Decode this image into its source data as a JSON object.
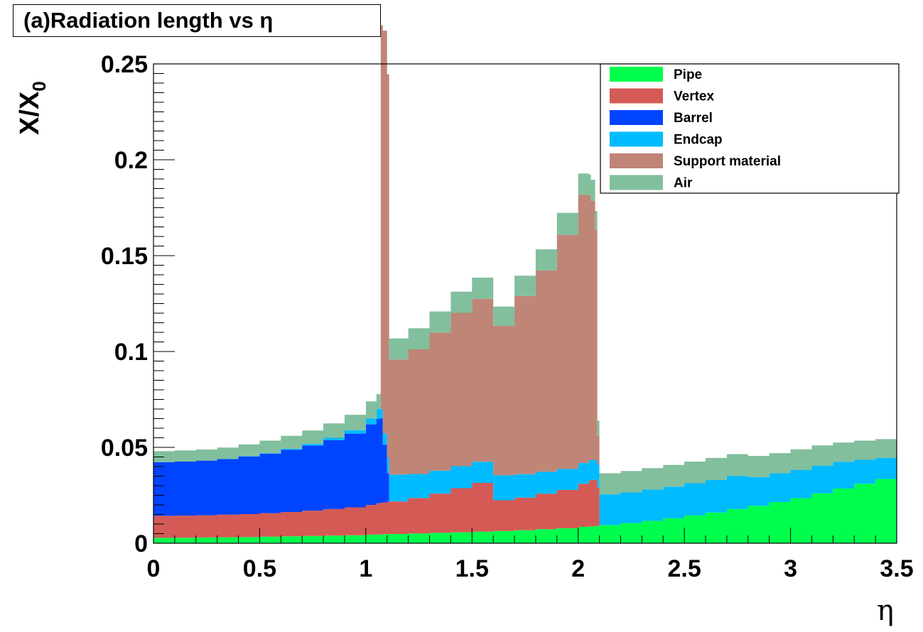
{
  "chart_data": {
    "type": "area",
    "title": "(a)Radiation length vs η",
    "xlabel": "η",
    "ylabel_main": "X/X",
    "ylabel_sub": "0",
    "xlim": [
      0,
      3.5
    ],
    "ylim": [
      0,
      0.25
    ],
    "x_ticks": [
      "0",
      "0.5",
      "1",
      "1.5",
      "2",
      "2.5",
      "3",
      "3.5"
    ],
    "y_ticks": [
      "0",
      "0.05",
      "0.1",
      "0.15",
      "0.2",
      "0.25"
    ],
    "legend_position": "top-right",
    "grid": false,
    "stacked": true,
    "x": [
      0,
      0.1,
      0.2,
      0.3,
      0.4,
      0.5,
      0.6,
      0.7,
      0.8,
      0.9,
      1.0,
      1.05,
      1.07,
      1.08,
      1.1,
      1.11,
      1.2,
      1.3,
      1.4,
      1.5,
      1.6,
      1.6,
      1.61,
      1.7,
      1.8,
      1.9,
      2.0,
      2.05,
      2.06,
      2.08,
      2.09,
      2.1,
      2.2,
      2.3,
      2.4,
      2.5,
      2.6,
      2.7,
      2.8,
      2.9,
      3.0,
      3.1,
      3.2,
      3.3,
      3.4,
      3.5
    ],
    "series": [
      {
        "name": "Pipe",
        "color": "#00ff4d",
        "values": [
          0.0028,
          0.0029,
          0.003,
          0.0031,
          0.0032,
          0.0034,
          0.0036,
          0.0038,
          0.004,
          0.0042,
          0.0045,
          0.0046,
          0.0047,
          0.0047,
          0.0048,
          0.0048,
          0.0051,
          0.0054,
          0.0057,
          0.006,
          0.0064,
          0.0064,
          0.0064,
          0.0068,
          0.0073,
          0.0078,
          0.0085,
          0.0088,
          0.0089,
          0.009,
          0.009,
          0.0095,
          0.0105,
          0.0117,
          0.013,
          0.0145,
          0.016,
          0.0178,
          0.0195,
          0.0215,
          0.0235,
          0.026,
          0.0285,
          0.031,
          0.0335,
          0.036
        ]
      },
      {
        "name": "Vertex",
        "color": "#d45a55",
        "values": [
          0.0115,
          0.0115,
          0.0116,
          0.0118,
          0.012,
          0.0123,
          0.0127,
          0.0132,
          0.0138,
          0.0145,
          0.0155,
          0.0162,
          0.0165,
          0.0166,
          0.0168,
          0.017,
          0.0185,
          0.0205,
          0.023,
          0.0255,
          0.029,
          0.016,
          0.016,
          0.017,
          0.0185,
          0.02,
          0.0225,
          0.024,
          0.0242,
          0.0238,
          0.02,
          0.0,
          0.0,
          0.0,
          0.0,
          0.0,
          0.0,
          0.0,
          0.0,
          0.0,
          0.0,
          0.0,
          0.0,
          0.0,
          0.0,
          0.0
        ]
      },
      {
        "name": "Barrel",
        "color": "#0044ff",
        "values": [
          0.028,
          0.0282,
          0.0285,
          0.029,
          0.03,
          0.031,
          0.0325,
          0.034,
          0.036,
          0.0385,
          0.042,
          0.044,
          0.044,
          0.03,
          0.015,
          0.0,
          0.0,
          0.0,
          0.0,
          0.0,
          0.0,
          0.0,
          0.0,
          0.0,
          0.0,
          0.0,
          0.0,
          0.0,
          0.0,
          0.0,
          0.0,
          0.0,
          0.0,
          0.0,
          0.0,
          0.0,
          0.0,
          0.0,
          0.0,
          0.0,
          0.0,
          0.0,
          0.0,
          0.0,
          0.0,
          0.0
        ]
      },
      {
        "name": "Endcap",
        "color": "#00bbff",
        "values": [
          0.0,
          0.0,
          0.0,
          0.0,
          0.0002,
          0.0003,
          0.0005,
          0.0008,
          0.0012,
          0.0018,
          0.003,
          0.005,
          0.005,
          0.006,
          0.008,
          0.014,
          0.0125,
          0.012,
          0.0115,
          0.011,
          0.012,
          0.013,
          0.013,
          0.0122,
          0.0115,
          0.011,
          0.0108,
          0.0105,
          0.0105,
          0.0105,
          0.012,
          0.016,
          0.016,
          0.0163,
          0.0165,
          0.0168,
          0.017,
          0.0172,
          0.015,
          0.015,
          0.0148,
          0.0145,
          0.014,
          0.0125,
          0.011,
          0.01
        ]
      },
      {
        "name": "Support material",
        "color": "#bf8577",
        "values": [
          0.0,
          0.0,
          0.0,
          0.0,
          0.0,
          0.0,
          0.0,
          0.0,
          0.0,
          0.0,
          0.0,
          0.0,
          0.2,
          0.21,
          0.2,
          0.06,
          0.065,
          0.072,
          0.08,
          0.085,
          0.088,
          0.078,
          0.078,
          0.093,
          0.105,
          0.122,
          0.14,
          0.138,
          0.135,
          0.12,
          0.015,
          0.0,
          0.0,
          0.0,
          0.0,
          0.0,
          0.0,
          0.0,
          0.0,
          0.0,
          0.0,
          0.0,
          0.0,
          0.0,
          0.0,
          0.0
        ]
      },
      {
        "name": "Air",
        "color": "#82bf9d",
        "values": [
          0.0057,
          0.0058,
          0.0058,
          0.006,
          0.0062,
          0.0065,
          0.0067,
          0.007,
          0.0075,
          0.008,
          0.009,
          0.008,
          0.0,
          0.0,
          0.0,
          0.011,
          0.011,
          0.011,
          0.011,
          0.011,
          0.011,
          0.01,
          0.01,
          0.0105,
          0.011,
          0.0115,
          0.011,
          0.011,
          0.011,
          0.01,
          0.008,
          0.011,
          0.0112,
          0.0112,
          0.0113,
          0.0113,
          0.0115,
          0.0115,
          0.011,
          0.0105,
          0.0107,
          0.0105,
          0.01,
          0.01,
          0.0098,
          0.0095
        ]
      }
    ]
  }
}
